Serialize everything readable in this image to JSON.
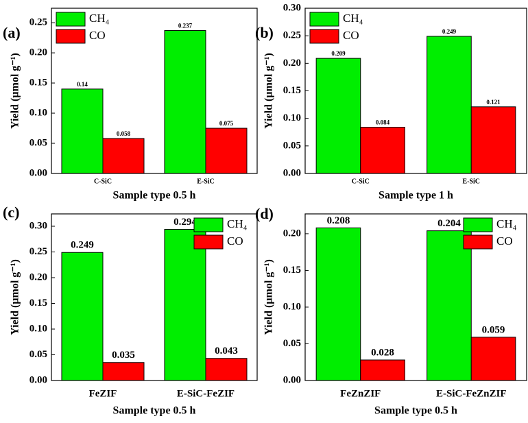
{
  "chart_data": [
    {
      "type": "bar",
      "panel_label": "(a)",
      "xlabel": "Sample type 0.5 h",
      "ylabel": "Yield (µmol g⁻¹)",
      "categories": [
        "C-SiC",
        "E-SiC"
      ],
      "series": [
        {
          "name": "CH₄",
          "color": "#00ee00",
          "values": [
            0.14,
            0.237
          ]
        },
        {
          "name": "CO",
          "color": "#ff0000",
          "values": [
            0.058,
            0.075
          ]
        }
      ],
      "ylim": [
        0,
        0.274
      ],
      "yticks": [
        {
          "value": 0,
          "label": "0.00"
        },
        0.05,
        {
          "value": 0.1,
          "label": "0.10"
        },
        0.15,
        {
          "value": 0.2,
          "label": "0.20"
        },
        0.25
      ],
      "legend": "upper left"
    },
    {
      "type": "bar",
      "panel_label": "(b)",
      "xlabel": "Sample type 1 h",
      "ylabel": "Yield (µmol g⁻¹)",
      "categories": [
        "C-SiC",
        "E-SiC"
      ],
      "series": [
        {
          "name": "CH₄",
          "color": "#00ee00",
          "values": [
            0.209,
            0.249
          ]
        },
        {
          "name": "CO",
          "color": "#ff0000",
          "values": [
            0.084,
            0.121
          ]
        }
      ],
      "ylim": [
        0,
        0.3
      ],
      "yticks": [
        {
          "value": 0,
          "label": "0.00"
        },
        0.05,
        {
          "value": 0.1,
          "label": "0.10"
        },
        0.15,
        {
          "value": 0.2,
          "label": "0.20"
        },
        0.25,
        {
          "value": 0.3,
          "label": "0.30"
        }
      ],
      "legend": "upper left"
    },
    {
      "type": "bar",
      "panel_label": "(c)",
      "xlabel": "Sample type 0.5 h",
      "ylabel": "Yield (µmol g⁻¹)",
      "categories": [
        "FeZIF",
        "E-SiC-FeZIF"
      ],
      "series": [
        {
          "name": "CH₄",
          "color": "#00ee00",
          "values": [
            0.249,
            0.294
          ]
        },
        {
          "name": "CO",
          "color": "#ff0000",
          "values": [
            0.035,
            0.043
          ]
        }
      ],
      "ylim": [
        0,
        0.324
      ],
      "yticks": [
        {
          "value": 0,
          "label": "0.00"
        },
        0.05,
        {
          "value": 0.1,
          "label": "0.10"
        },
        0.15,
        {
          "value": 0.2,
          "label": "0.20"
        },
        0.25,
        {
          "value": 0.3,
          "label": "0.30"
        }
      ],
      "legend": "upper right"
    },
    {
      "type": "bar",
      "panel_label": "(d)",
      "xlabel": "Sample type 0.5 h",
      "ylabel": "Yield (µmol g⁻¹)",
      "categories": [
        "FeZnZIF",
        "E-SiC-FeZnZIF"
      ],
      "series": [
        {
          "name": "CH₄",
          "color": "#00ee00",
          "values": [
            0.208,
            0.204
          ]
        },
        {
          "name": "CO",
          "color": "#ff0000",
          "values": [
            0.028,
            0.059
          ]
        }
      ],
      "ylim": [
        0,
        0.227
      ],
      "yticks": [
        {
          "value": 0,
          "label": "0.00"
        },
        0.05,
        {
          "value": 0.1,
          "label": "0.10"
        },
        0.15,
        {
          "value": 0.2,
          "label": "0.20"
        }
      ],
      "legend": "upper right"
    }
  ]
}
